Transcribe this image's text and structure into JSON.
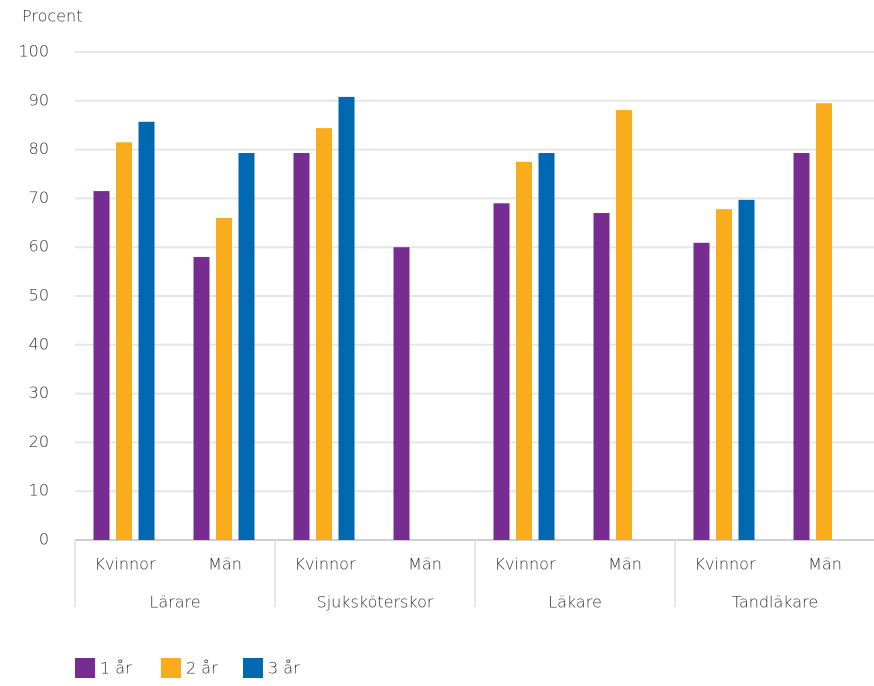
{
  "chart_data": {
    "type": "bar",
    "y_label": "Procent",
    "groups": [
      "Lärare",
      "Sjuksköterskor",
      "Läkare",
      "Tandläkare"
    ],
    "categories": [
      "Kvinnor",
      "Män",
      "Kvinnor",
      "Män",
      "Kvinnor",
      "Män",
      "Kvinnor",
      "Män"
    ],
    "series": [
      {
        "name": "1 år",
        "color": "#772c91",
        "values": [
          71.5,
          58,
          79.3,
          60,
          69,
          67,
          60.9,
          79.3
        ]
      },
      {
        "name": "2 år",
        "color": "#f9ac1c",
        "values": [
          81.5,
          66,
          84.4,
          null,
          77.5,
          88.1,
          67.8,
          89.5
        ]
      },
      {
        "name": "3 år",
        "color": "#0067b1",
        "values": [
          85.7,
          79.3,
          90.8,
          null,
          79.3,
          null,
          69.7,
          null
        ]
      }
    ],
    "ylim": [
      0,
      100
    ],
    "yticks": [
      0,
      10,
      20,
      30,
      40,
      50,
      60,
      70,
      80,
      90,
      100
    ],
    "grid": true
  }
}
